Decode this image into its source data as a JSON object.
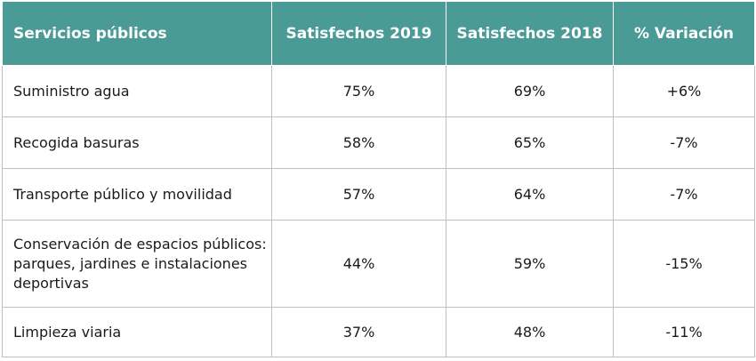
{
  "chart_data": {
    "type": "table",
    "columns": [
      "Servicios públicos",
      "Satisfechos 2019",
      "Satisfechos 2018",
      "% Variación"
    ],
    "rows": [
      {
        "servicio": "Suministro agua",
        "s2019": "75%",
        "s2018": "69%",
        "variacion": "+6%"
      },
      {
        "servicio": "Recogida basuras",
        "s2019": "58%",
        "s2018": "65%",
        "variacion": "-7%"
      },
      {
        "servicio": "Transporte público y movilidad",
        "s2019": "57%",
        "s2018": "64%",
        "variacion": "-7%"
      },
      {
        "servicio": "Conservación de espacios públicos: parques, jardines e instalaciones deportivas",
        "s2019": "44%",
        "s2018": "59%",
        "variacion": "-15%"
      },
      {
        "servicio": "Limpieza viaria",
        "s2019": "37%",
        "s2018": "48%",
        "variacion": "-11%"
      }
    ],
    "header_color": "#4a9b96",
    "header_text_color": "#ffffff",
    "border_color": "#bfbfbf"
  }
}
